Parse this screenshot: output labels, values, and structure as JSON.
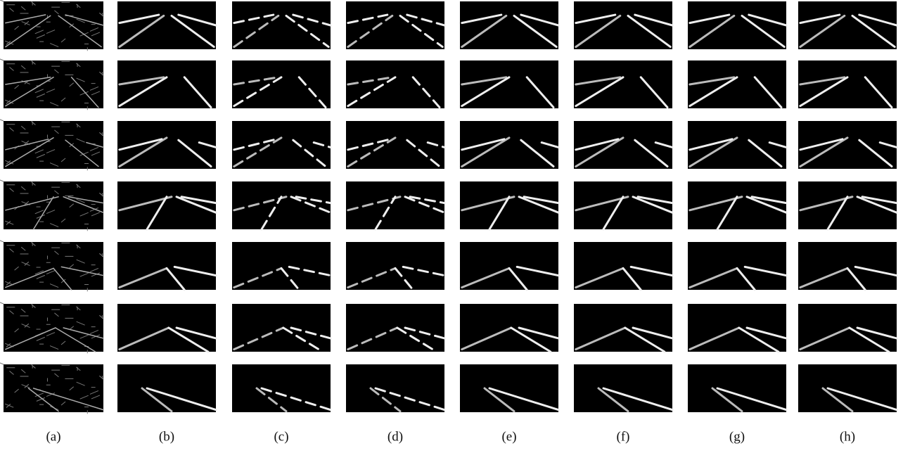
{
  "figure": {
    "panel_labels": [
      "(a)",
      "(b)",
      "(c)",
      "(d)",
      "(e)",
      "(f)",
      "(g)",
      "(h)"
    ]
  }
}
